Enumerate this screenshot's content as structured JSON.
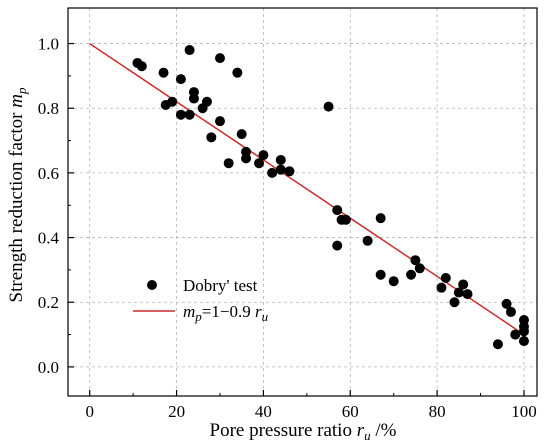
{
  "chart_data": {
    "type": "scatter",
    "xlabel": {
      "main": "Pore pressure ratio ",
      "var": "r",
      "sub": "u",
      "tail": " /%"
    },
    "ylabel": {
      "main": "Strength reduction factor ",
      "var": "m",
      "sub": "p"
    },
    "xlim": [
      -5,
      103
    ],
    "ylim": [
      -0.09,
      1.11
    ],
    "xticks": [
      0,
      20,
      40,
      60,
      80,
      100
    ],
    "xtick_labels": [
      "0",
      "20",
      "40",
      "60",
      "80",
      "100"
    ],
    "yticks": [
      0.0,
      0.2,
      0.4,
      0.6,
      0.8,
      1.0
    ],
    "ytick_labels": [
      "0.0",
      "0.2",
      "0.4",
      "0.6",
      "0.8",
      "1.0"
    ],
    "grid": true,
    "legend_position": "bottom-left",
    "series": [
      {
        "name": "Dobry' test",
        "kind": "scatter",
        "color": "#000000",
        "points": [
          [
            11,
            0.94
          ],
          [
            12,
            0.93
          ],
          [
            17,
            0.91
          ],
          [
            17.5,
            0.81
          ],
          [
            19,
            0.82
          ],
          [
            21,
            0.89
          ],
          [
            21,
            0.78
          ],
          [
            23,
            0.98
          ],
          [
            23,
            0.78
          ],
          [
            24,
            0.85
          ],
          [
            24,
            0.83
          ],
          [
            26,
            0.8
          ],
          [
            27,
            0.82
          ],
          [
            28,
            0.71
          ],
          [
            30,
            0.955
          ],
          [
            30,
            0.76
          ],
          [
            34,
            0.91
          ],
          [
            32,
            0.63
          ],
          [
            35,
            0.72
          ],
          [
            36,
            0.665
          ],
          [
            36,
            0.645
          ],
          [
            39,
            0.63
          ],
          [
            40,
            0.655
          ],
          [
            42,
            0.6
          ],
          [
            44,
            0.64
          ],
          [
            44,
            0.61
          ],
          [
            46,
            0.605
          ],
          [
            55,
            0.805
          ],
          [
            57,
            0.485
          ],
          [
            57,
            0.375
          ],
          [
            58,
            0.455
          ],
          [
            59,
            0.455
          ],
          [
            64,
            0.39
          ],
          [
            67,
            0.46
          ],
          [
            67,
            0.285
          ],
          [
            70,
            0.265
          ],
          [
            74,
            0.285
          ],
          [
            75,
            0.33
          ],
          [
            76,
            0.305
          ],
          [
            81,
            0.245
          ],
          [
            82,
            0.275
          ],
          [
            84,
            0.2
          ],
          [
            85,
            0.23
          ],
          [
            86,
            0.255
          ],
          [
            87,
            0.225
          ],
          [
            94,
            0.07
          ],
          [
            96,
            0.195
          ],
          [
            97,
            0.17
          ],
          [
            98,
            0.1
          ],
          [
            100,
            0.145
          ],
          [
            100,
            0.125
          ],
          [
            100,
            0.11
          ],
          [
            100,
            0.08
          ]
        ]
      },
      {
        "name": {
          "var": "m",
          "sub": "p",
          "eq": "=1−0.9 ",
          "var2": "r",
          "sub2": "u"
        },
        "kind": "line",
        "color": "#cc2b2b",
        "intercept": 1.0,
        "slope_per_percent": -0.009,
        "x_range": [
          0,
          100
        ]
      }
    ]
  }
}
